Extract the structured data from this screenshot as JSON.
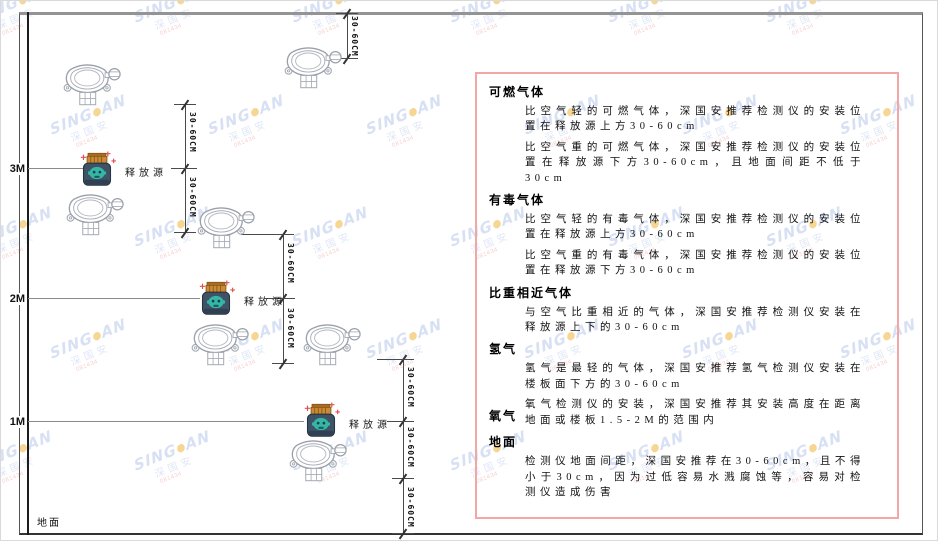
{
  "watermark": {
    "brand_left": "SING",
    "brand_right": "AN",
    "brand_cn": "深国安",
    "code": "081434"
  },
  "diagram": {
    "axis_labels": {
      "m3": "3M",
      "m2": "2M",
      "m1": "1M"
    },
    "ground_label": "地面",
    "release_source_label": "释放源",
    "dimension_label": "30-60CM"
  },
  "panel": {
    "sections": [
      {
        "heading": "可燃气体",
        "inline": false,
        "paragraphs": [
          "比空气轻的可燃气体，深国安推荐检测仪的安装位置在释放源上方30-60cm",
          "比空气重的可燃气体，深国安推荐检测仪的安装位置在释放源下方30-60cm，且地面间距不低于30cm"
        ]
      },
      {
        "heading": "有毒气体",
        "inline": false,
        "paragraphs": [
          "比空气轻的有毒气体，深国安推荐检测仪的安装位置在释放源上方30-60cm",
          "比空气重的有毒气体，深国安推荐检测仪的安装位置在释放源下方30-60cm"
        ]
      },
      {
        "heading": "比重相近气体",
        "inline": false,
        "paragraphs": [
          "与空气比重相近的气体，深国安推荐检测仪安装在释放源上下的30-60cm"
        ]
      },
      {
        "heading": "氢气",
        "inline": false,
        "paragraphs": [
          "氢气是最轻的气体，深国安推荐氢气检测仪安装在楼板面下方的30-60cm"
        ]
      },
      {
        "heading": "氧气",
        "inline": true,
        "paragraphs": [
          "氧气检测仪的安装，深国安推荐其安装高度在距离地面或楼板1.5-2M的范围内"
        ]
      },
      {
        "heading": "地面",
        "inline": false,
        "paragraphs": [
          "检测仪地面间距，深国安推荐在30-60cm，且不得小于30cm，因为过低容易水溅腐蚀等，容易对检测仪造成伤害"
        ]
      }
    ]
  }
}
